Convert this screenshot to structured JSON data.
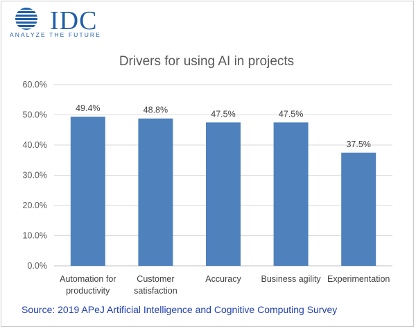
{
  "logo": {
    "word": "IDC",
    "tagline": "ANALYZE THE FUTURE"
  },
  "footer": {
    "source": "Source: 2019 APeJ Artificial Intelligence and Cognitive Computing Survey"
  },
  "colors": {
    "bar": "#4f81bd",
    "grid": "#d9d9d9",
    "brand": "#1f5ea8",
    "source_text": "#1f3fae"
  },
  "chart_data": {
    "type": "bar",
    "title": "Drivers for using AI in projects",
    "categories": [
      [
        "Automation for",
        "productivity"
      ],
      [
        "Customer",
        "satisfaction"
      ],
      [
        "Accuracy"
      ],
      [
        "Business agility"
      ],
      [
        "Experimentation"
      ]
    ],
    "values": [
      49.4,
      48.8,
      47.5,
      47.5,
      37.5
    ],
    "data_labels": [
      "49.4%",
      "48.8%",
      "47.5%",
      "47.5%",
      "37.5%"
    ],
    "ylim": [
      0,
      60
    ],
    "yticks": [
      "0.0%",
      "10.0%",
      "20.0%",
      "30.0%",
      "40.0%",
      "50.0%",
      "60.0%"
    ],
    "grid": true,
    "legend": "none"
  }
}
